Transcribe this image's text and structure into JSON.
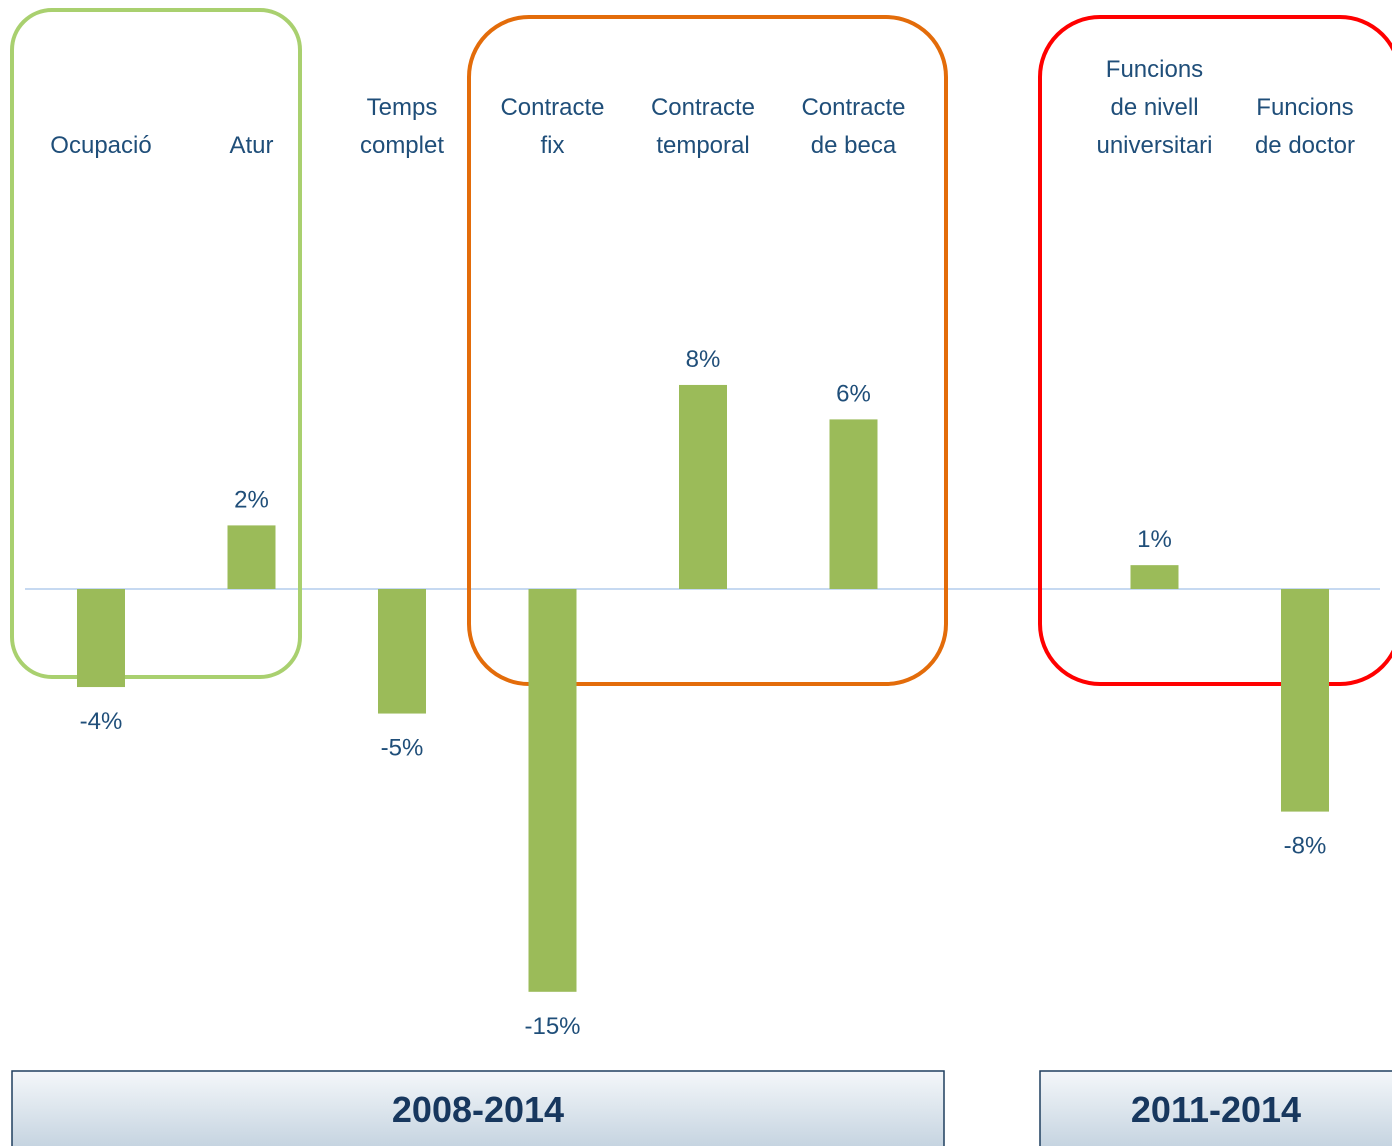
{
  "chart_data": {
    "type": "bar",
    "categories": [
      [
        "Ocupació"
      ],
      [
        "Atur"
      ],
      [
        "Temps",
        "complet"
      ],
      [
        "Contracte",
        "fix"
      ],
      [
        "Contracte",
        "temporal"
      ],
      [
        "Contracte",
        "de beca"
      ],
      null,
      [
        "Funcions",
        "de nivell",
        "universitari"
      ],
      [
        "Funcions",
        "de doctor"
      ]
    ],
    "values": [
      -3.7,
      2.4,
      -4.7,
      -15.2,
      7.7,
      6.4,
      null,
      0.9,
      -8.4
    ],
    "value_labels": [
      "-4%",
      "2%",
      "-5%",
      "-15%",
      "8%",
      "6%",
      null,
      "1%",
      "-8%"
    ],
    "color": "#9bbb59",
    "periods": [
      "2008-2014",
      "2011-2014"
    ]
  }
}
